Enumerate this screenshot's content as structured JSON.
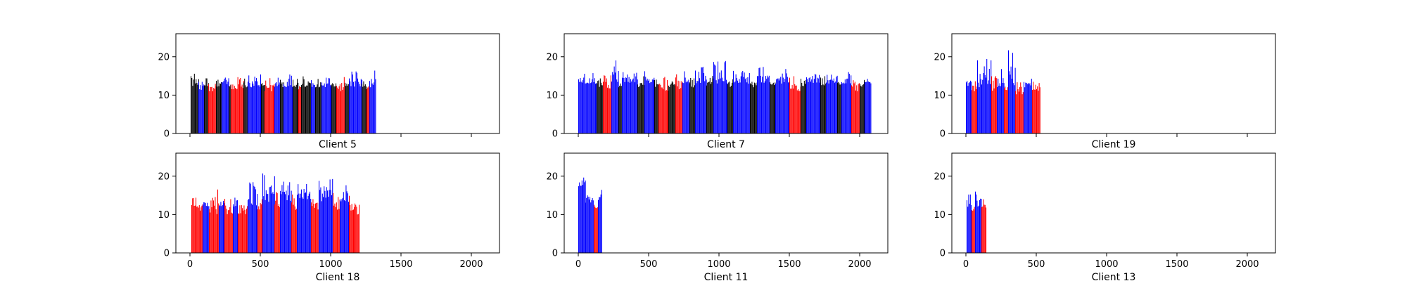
{
  "chart_data": [
    {
      "type": "bar",
      "xlabel": "Client 5",
      "xlim": [
        -100,
        2200
      ],
      "ylim": [
        0,
        26
      ],
      "xticks": [
        0,
        500,
        1000,
        1500,
        2000
      ],
      "yticks": [
        0,
        10,
        20
      ],
      "show_x_tick_labels": false,
      "segments": [
        {
          "x0": 5,
          "x1": 60,
          "color": "#000000",
          "base": 12,
          "peak": 16.5
        },
        {
          "x0": 60,
          "x1": 100,
          "color": "#0000ff",
          "base": 11,
          "peak": 14
        },
        {
          "x0": 100,
          "x1": 130,
          "color": "#000000",
          "base": 12,
          "peak": 14.5
        },
        {
          "x0": 130,
          "x1": 185,
          "color": "#ff0000",
          "base": 11,
          "peak": 15
        },
        {
          "x0": 185,
          "x1": 225,
          "color": "#000000",
          "base": 12,
          "peak": 14.5
        },
        {
          "x0": 225,
          "x1": 275,
          "color": "#0000ff",
          "base": 12,
          "peak": 16.5
        },
        {
          "x0": 275,
          "x1": 290,
          "color": "#000000",
          "base": 12,
          "peak": 13
        },
        {
          "x0": 290,
          "x1": 380,
          "color": "#ff0000",
          "base": 11,
          "peak": 15.5
        },
        {
          "x0": 380,
          "x1": 410,
          "color": "#000000",
          "base": 12,
          "peak": 14.5
        },
        {
          "x0": 410,
          "x1": 505,
          "color": "#0000ff",
          "base": 12,
          "peak": 15.5
        },
        {
          "x0": 505,
          "x1": 530,
          "color": "#000000",
          "base": 12,
          "peak": 14
        },
        {
          "x0": 530,
          "x1": 600,
          "color": "#ff0000",
          "base": 11,
          "peak": 14.5
        },
        {
          "x0": 600,
          "x1": 640,
          "color": "#0000ff",
          "base": 12,
          "peak": 15
        },
        {
          "x0": 640,
          "x1": 665,
          "color": "#000000",
          "base": 12,
          "peak": 14
        },
        {
          "x0": 665,
          "x1": 730,
          "color": "#0000ff",
          "base": 12,
          "peak": 15.5
        },
        {
          "x0": 730,
          "x1": 770,
          "color": "#000000",
          "base": 12,
          "peak": 14.5
        },
        {
          "x0": 770,
          "x1": 790,
          "color": "#ff0000",
          "base": 11,
          "peak": 13.5
        },
        {
          "x0": 790,
          "x1": 860,
          "color": "#000000",
          "base": 12,
          "peak": 15
        },
        {
          "x0": 860,
          "x1": 890,
          "color": "#0000ff",
          "base": 12,
          "peak": 14.5
        },
        {
          "x0": 890,
          "x1": 935,
          "color": "#000000",
          "base": 12,
          "peak": 14.5
        },
        {
          "x0": 935,
          "x1": 1005,
          "color": "#0000ff",
          "base": 12,
          "peak": 15
        },
        {
          "x0": 1005,
          "x1": 1040,
          "color": "#000000",
          "base": 12,
          "peak": 13.5
        },
        {
          "x0": 1040,
          "x1": 1100,
          "color": "#ff0000",
          "base": 11,
          "peak": 15
        },
        {
          "x0": 1100,
          "x1": 1130,
          "color": "#000000",
          "base": 12,
          "peak": 14.5
        },
        {
          "x0": 1130,
          "x1": 1220,
          "color": "#0000ff",
          "base": 12,
          "peak": 16.5
        },
        {
          "x0": 1220,
          "x1": 1255,
          "color": "#000000",
          "base": 12,
          "peak": 14
        },
        {
          "x0": 1255,
          "x1": 1275,
          "color": "#ff0000",
          "base": 11,
          "peak": 13.5
        },
        {
          "x0": 1275,
          "x1": 1320,
          "color": "#0000ff",
          "base": 12,
          "peak": 16.5
        }
      ]
    },
    {
      "type": "bar",
      "xlabel": "Client 7",
      "xlim": [
        -100,
        2200
      ],
      "ylim": [
        0,
        26
      ],
      "xticks": [
        0,
        500,
        1000,
        1500,
        2000
      ],
      "yticks": [
        0,
        10,
        20
      ],
      "show_x_tick_labels": false,
      "segments": [
        {
          "x0": 0,
          "x1": 130,
          "color": "#0000ff",
          "base": 13,
          "peak": 16
        },
        {
          "x0": 130,
          "x1": 175,
          "color": "#000000",
          "base": 12,
          "peak": 14.5
        },
        {
          "x0": 175,
          "x1": 235,
          "color": "#ff0000",
          "base": 11,
          "peak": 15.5
        },
        {
          "x0": 235,
          "x1": 285,
          "color": "#0000ff",
          "base": 13,
          "peak": 19.5
        },
        {
          "x0": 285,
          "x1": 310,
          "color": "#000000",
          "base": 12,
          "peak": 14.5
        },
        {
          "x0": 310,
          "x1": 420,
          "color": "#0000ff",
          "base": 13,
          "peak": 16
        },
        {
          "x0": 420,
          "x1": 470,
          "color": "#000000",
          "base": 12,
          "peak": 15
        },
        {
          "x0": 470,
          "x1": 540,
          "color": "#0000ff",
          "base": 13,
          "peak": 16.5
        },
        {
          "x0": 540,
          "x1": 570,
          "color": "#000000",
          "base": 12,
          "peak": 14.5
        },
        {
          "x0": 570,
          "x1": 640,
          "color": "#ff0000",
          "base": 11,
          "peak": 15
        },
        {
          "x0": 640,
          "x1": 690,
          "color": "#000000",
          "base": 12,
          "peak": 15
        },
        {
          "x0": 690,
          "x1": 740,
          "color": "#ff0000",
          "base": 11,
          "peak": 16
        },
        {
          "x0": 740,
          "x1": 790,
          "color": "#0000ff",
          "base": 13,
          "peak": 16.5
        },
        {
          "x0": 790,
          "x1": 830,
          "color": "#000000",
          "base": 12,
          "peak": 14.5
        },
        {
          "x0": 830,
          "x1": 910,
          "color": "#0000ff",
          "base": 13,
          "peak": 17.5
        },
        {
          "x0": 910,
          "x1": 960,
          "color": "#000000",
          "base": 12,
          "peak": 15
        },
        {
          "x0": 960,
          "x1": 1060,
          "color": "#0000ff",
          "base": 13,
          "peak": 19
        },
        {
          "x0": 1060,
          "x1": 1100,
          "color": "#000000",
          "base": 12,
          "peak": 15
        },
        {
          "x0": 1100,
          "x1": 1220,
          "color": "#0000ff",
          "base": 13,
          "peak": 16.5
        },
        {
          "x0": 1220,
          "x1": 1270,
          "color": "#000000",
          "base": 12,
          "peak": 15
        },
        {
          "x0": 1270,
          "x1": 1360,
          "color": "#0000ff",
          "base": 13,
          "peak": 17.5
        },
        {
          "x0": 1360,
          "x1": 1400,
          "color": "#000000",
          "base": 12,
          "peak": 15
        },
        {
          "x0": 1400,
          "x1": 1500,
          "color": "#0000ff",
          "base": 13,
          "peak": 17
        },
        {
          "x0": 1500,
          "x1": 1580,
          "color": "#ff0000",
          "base": 11,
          "peak": 15
        },
        {
          "x0": 1580,
          "x1": 1620,
          "color": "#000000",
          "base": 12,
          "peak": 14.5
        },
        {
          "x0": 1620,
          "x1": 1720,
          "color": "#0000ff",
          "base": 13,
          "peak": 16
        },
        {
          "x0": 1720,
          "x1": 1760,
          "color": "#000000",
          "base": 12,
          "peak": 15
        },
        {
          "x0": 1760,
          "x1": 1840,
          "color": "#0000ff",
          "base": 13,
          "peak": 15.5
        },
        {
          "x0": 1840,
          "x1": 1870,
          "color": "#000000",
          "base": 12,
          "peak": 14
        },
        {
          "x0": 1870,
          "x1": 1940,
          "color": "#0000ff",
          "base": 13,
          "peak": 16.5
        },
        {
          "x0": 1940,
          "x1": 2000,
          "color": "#ff0000",
          "base": 11,
          "peak": 15.5
        },
        {
          "x0": 2000,
          "x1": 2035,
          "color": "#000000",
          "base": 12,
          "peak": 14
        },
        {
          "x0": 2035,
          "x1": 2080,
          "color": "#0000ff",
          "base": 13,
          "peak": 14.5
        }
      ]
    },
    {
      "type": "bar",
      "xlabel": "Client 19",
      "xlim": [
        -100,
        2200
      ],
      "ylim": [
        0,
        26
      ],
      "xticks": [
        0,
        500,
        1000,
        1500,
        2000
      ],
      "yticks": [
        0,
        10,
        20
      ],
      "show_x_tick_labels": false,
      "segments": [
        {
          "x0": 0,
          "x1": 40,
          "color": "#0000ff",
          "base": 12,
          "peak": 15
        },
        {
          "x0": 40,
          "x1": 80,
          "color": "#ff0000",
          "base": 11,
          "peak": 14
        },
        {
          "x0": 80,
          "x1": 180,
          "color": "#0000ff",
          "base": 12,
          "peak": 19.5
        },
        {
          "x0": 180,
          "x1": 220,
          "color": "#ff0000",
          "base": 11,
          "peak": 15
        },
        {
          "x0": 220,
          "x1": 270,
          "color": "#0000ff",
          "base": 12,
          "peak": 17
        },
        {
          "x0": 270,
          "x1": 300,
          "color": "#ff0000",
          "base": 11,
          "peak": 14
        },
        {
          "x0": 300,
          "x1": 350,
          "color": "#0000ff",
          "base": 12,
          "peak": 22
        },
        {
          "x0": 350,
          "x1": 410,
          "color": "#ff0000",
          "base": 10,
          "peak": 14.5
        },
        {
          "x0": 410,
          "x1": 470,
          "color": "#0000ff",
          "base": 12,
          "peak": 15
        },
        {
          "x0": 470,
          "x1": 530,
          "color": "#ff0000",
          "base": 11,
          "peak": 13.5
        }
      ]
    },
    {
      "type": "bar",
      "xlabel": "Client 18",
      "xlim": [
        -100,
        2200
      ],
      "ylim": [
        0,
        26
      ],
      "xticks": [
        0,
        500,
        1000,
        1500,
        2000
      ],
      "yticks": [
        0,
        10,
        20
      ],
      "xticklabels": [
        "0",
        "500",
        "1000",
        "1500",
        "2000"
      ],
      "show_x_tick_labels": true,
      "segments": [
        {
          "x0": 10,
          "x1": 90,
          "color": "#ff0000",
          "base": 11,
          "peak": 14.5
        },
        {
          "x0": 90,
          "x1": 135,
          "color": "#0000ff",
          "base": 12,
          "peak": 15
        },
        {
          "x0": 135,
          "x1": 205,
          "color": "#ff0000",
          "base": 10,
          "peak": 17
        },
        {
          "x0": 205,
          "x1": 245,
          "color": "#0000ff",
          "base": 12,
          "peak": 14
        },
        {
          "x0": 245,
          "x1": 305,
          "color": "#ff0000",
          "base": 10,
          "peak": 14.5
        },
        {
          "x0": 305,
          "x1": 340,
          "color": "#0000ff",
          "base": 12,
          "peak": 16.5
        },
        {
          "x0": 340,
          "x1": 410,
          "color": "#ff0000",
          "base": 10,
          "peak": 15
        },
        {
          "x0": 410,
          "x1": 480,
          "color": "#0000ff",
          "base": 12,
          "peak": 18.5
        },
        {
          "x0": 480,
          "x1": 515,
          "color": "#ff0000",
          "base": 11,
          "peak": 15
        },
        {
          "x0": 515,
          "x1": 600,
          "color": "#0000ff",
          "base": 13,
          "peak": 21.5
        },
        {
          "x0": 600,
          "x1": 640,
          "color": "#ff0000",
          "base": 11,
          "peak": 16
        },
        {
          "x0": 640,
          "x1": 720,
          "color": "#0000ff",
          "base": 13,
          "peak": 19
        },
        {
          "x0": 720,
          "x1": 760,
          "color": "#ff0000",
          "base": 11,
          "peak": 16
        },
        {
          "x0": 760,
          "x1": 860,
          "color": "#0000ff",
          "base": 13,
          "peak": 18.5
        },
        {
          "x0": 860,
          "x1": 915,
          "color": "#ff0000",
          "base": 11,
          "peak": 15
        },
        {
          "x0": 915,
          "x1": 1015,
          "color": "#0000ff",
          "base": 13,
          "peak": 19.5
        },
        {
          "x0": 1015,
          "x1": 1065,
          "color": "#ff0000",
          "base": 11,
          "peak": 16
        },
        {
          "x0": 1065,
          "x1": 1130,
          "color": "#0000ff",
          "base": 13,
          "peak": 18
        },
        {
          "x0": 1130,
          "x1": 1170,
          "color": "#ff0000",
          "base": 11,
          "peak": 15
        },
        {
          "x0": 1170,
          "x1": 1200,
          "color": "#ff0000",
          "base": 10,
          "peak": 17
        }
      ]
    },
    {
      "type": "bar",
      "xlabel": "Client 11",
      "xlim": [
        -100,
        2200
      ],
      "ylim": [
        0,
        26
      ],
      "xticks": [
        0,
        500,
        1000,
        1500,
        2000
      ],
      "yticks": [
        0,
        10,
        20
      ],
      "xticklabels": [
        "0",
        "500",
        "1000",
        "1500",
        "2000"
      ],
      "show_x_tick_labels": true,
      "segments": [
        {
          "x0": 0,
          "x1": 50,
          "color": "#0000ff",
          "base": 17,
          "peak": 21.5
        },
        {
          "x0": 50,
          "x1": 110,
          "color": "#0000ff",
          "base": 13,
          "peak": 15
        },
        {
          "x0": 110,
          "x1": 140,
          "color": "#ff0000",
          "base": 11,
          "peak": 14
        },
        {
          "x0": 140,
          "x1": 165,
          "color": "#0000ff",
          "base": 13,
          "peak": 16.5
        }
      ]
    },
    {
      "type": "bar",
      "xlabel": "Client 13",
      "xlim": [
        -100,
        2200
      ],
      "ylim": [
        0,
        26
      ],
      "xticks": [
        0,
        500,
        1000,
        1500,
        2000
      ],
      "yticks": [
        0,
        10,
        20
      ],
      "xticklabels": [
        "0",
        "500",
        "1000",
        "1500",
        "2000"
      ],
      "show_x_tick_labels": true,
      "segments": [
        {
          "x0": 5,
          "x1": 40,
          "color": "#0000ff",
          "base": 12,
          "peak": 15.5
        },
        {
          "x0": 40,
          "x1": 65,
          "color": "#ff0000",
          "base": 11,
          "peak": 13
        },
        {
          "x0": 65,
          "x1": 110,
          "color": "#0000ff",
          "base": 12,
          "peak": 17.5
        },
        {
          "x0": 110,
          "x1": 145,
          "color": "#ff0000",
          "base": 11,
          "peak": 14
        }
      ]
    }
  ]
}
